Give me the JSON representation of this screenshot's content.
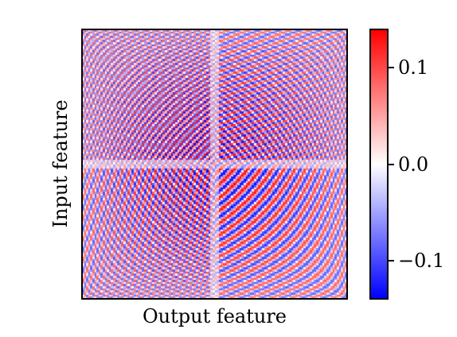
{
  "chart_data": {
    "type": "heatmap",
    "title": "",
    "xlabel": "Output feature",
    "ylabel": "Input feature",
    "colormap": "bwr",
    "colormap_colors": {
      "low": "#0000ff",
      "mid": "#ffffff",
      "high": "#ff0000"
    },
    "value_range": [
      -0.14,
      0.14
    ],
    "x_ticks_visible": false,
    "y_ticks_visible": false,
    "colorbar": {
      "ticks": [
        {
          "value": 0.1,
          "label": "0.1"
        },
        {
          "value": 0.0,
          "label": "0.0"
        },
        {
          "value": -0.1,
          "label": "−0.1"
        }
      ]
    },
    "pattern_description": "symmetric oscillating interference pattern with four quadrant lobes"
  }
}
